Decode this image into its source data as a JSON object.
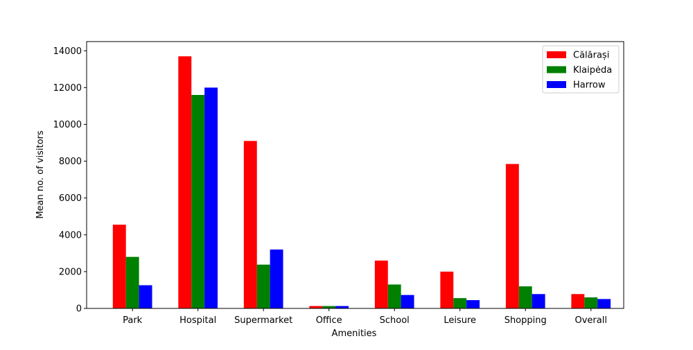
{
  "chart_data": {
    "type": "bar",
    "categories": [
      "Park",
      "Hospital",
      "Supermarket",
      "Office",
      "School",
      "Leisure",
      "Shopping",
      "Overall"
    ],
    "series": [
      {
        "name": "Călărași",
        "color": "#ff0000",
        "values": [
          4550,
          13700,
          9100,
          130,
          2600,
          2000,
          7850,
          780
        ]
      },
      {
        "name": "Klaipėda",
        "color": "#008000",
        "values": [
          2800,
          11600,
          2380,
          130,
          1300,
          560,
          1200,
          600
        ]
      },
      {
        "name": "Harrow",
        "color": "#0000ff",
        "values": [
          1260,
          12000,
          3200,
          130,
          730,
          450,
          780,
          510
        ]
      }
    ],
    "xlabel": "Amenities",
    "ylabel": "Mean no. of visitors",
    "ylim": [
      0,
      14500
    ],
    "yticks": [
      0,
      2000,
      4000,
      6000,
      8000,
      10000,
      12000,
      14000
    ],
    "ytick_labels": [
      "0",
      "2000",
      "4000",
      "6000",
      "8000",
      "10000",
      "12000",
      "14000"
    ],
    "grid": false,
    "legend_position": "top-right"
  }
}
